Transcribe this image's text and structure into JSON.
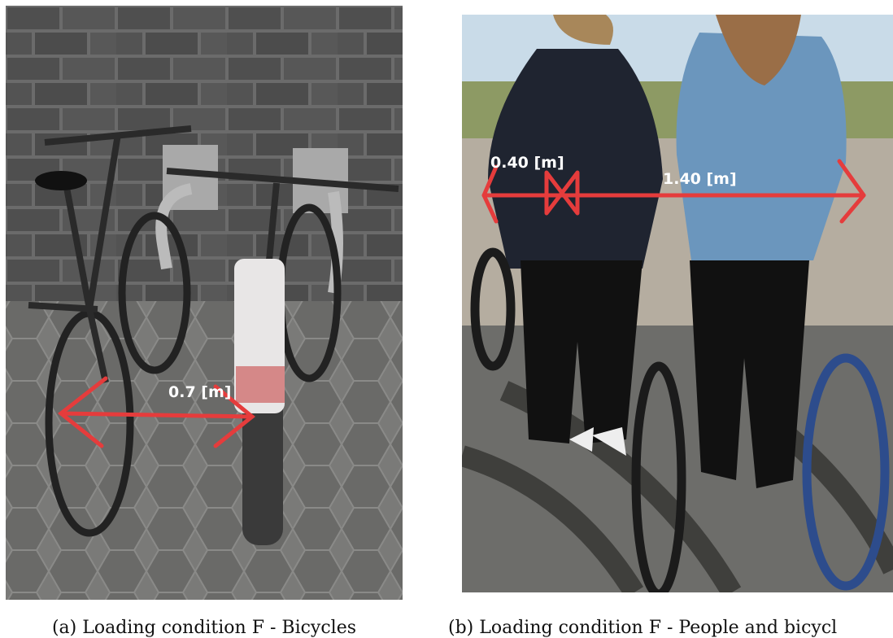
{
  "figures": [
    {
      "annotations": [
        "0.7 [m]"
      ],
      "caption": "(a) Loading condition F - Bicycles"
    },
    {
      "annotations": [
        "0.40 [m]",
        "1.40 [m]"
      ],
      "caption": "(b) Loading condition F - People and bicycl"
    }
  ]
}
